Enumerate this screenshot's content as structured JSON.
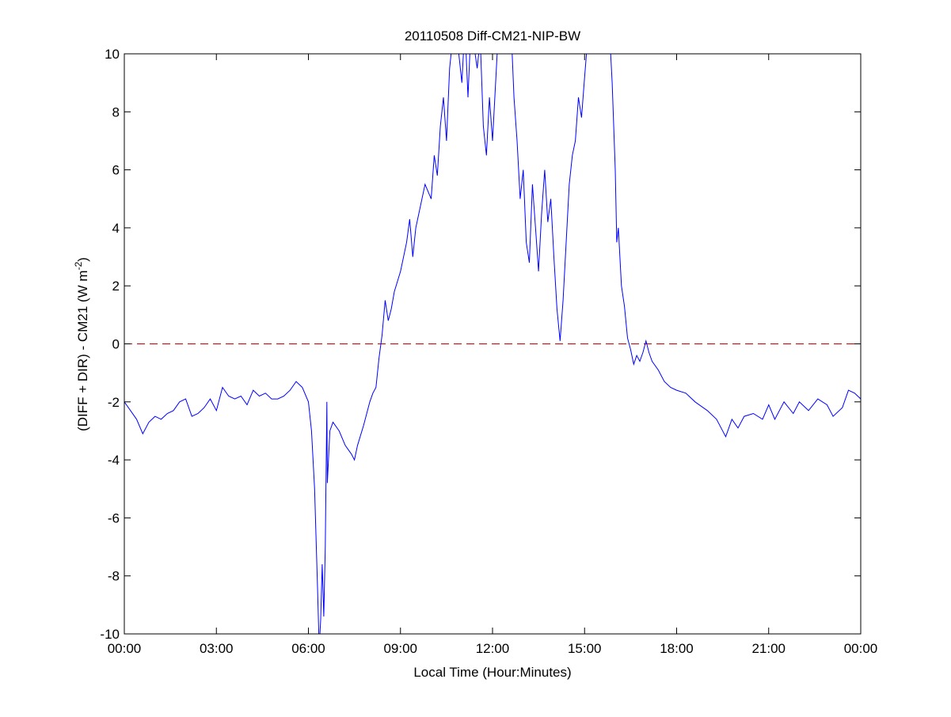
{
  "chart_data": {
    "type": "line",
    "title": "20110508 Diff-CM21-NIP-BW",
    "xlabel": "Local Time (Hour:Minutes)",
    "ylabel": {
      "main": "(DIFF + DIR) - CM21 (W m",
      "superscript": "-2",
      "close": ")"
    },
    "xlim": [
      "00:00",
      "24:00"
    ],
    "ylim": [
      -10,
      10
    ],
    "x_ticks": [
      "00:00",
      "03:00",
      "06:00",
      "09:00",
      "12:00",
      "15:00",
      "18:00",
      "21:00",
      "00:00"
    ],
    "y_ticks": [
      "-10",
      "-8",
      "-6",
      "-4",
      "-2",
      "0",
      "2",
      "4",
      "6",
      "8",
      "10"
    ],
    "grid": false,
    "reference_line": {
      "y": 0,
      "style": "dashed",
      "color": "#cc0000"
    },
    "series_color": "#0000ff",
    "points": [
      [
        "00:00",
        -2.0
      ],
      [
        "00:12",
        -2.3
      ],
      [
        "00:24",
        -2.6
      ],
      [
        "00:36",
        -3.1
      ],
      [
        "00:48",
        -2.7
      ],
      [
        "01:00",
        -2.5
      ],
      [
        "01:12",
        -2.6
      ],
      [
        "01:24",
        -2.4
      ],
      [
        "01:36",
        -2.3
      ],
      [
        "01:48",
        -2.0
      ],
      [
        "02:00",
        -1.9
      ],
      [
        "02:12",
        -2.5
      ],
      [
        "02:24",
        -2.4
      ],
      [
        "02:36",
        -2.2
      ],
      [
        "02:48",
        -1.9
      ],
      [
        "03:00",
        -2.3
      ],
      [
        "03:12",
        -1.5
      ],
      [
        "03:24",
        -1.8
      ],
      [
        "03:36",
        -1.9
      ],
      [
        "03:48",
        -1.8
      ],
      [
        "04:00",
        -2.1
      ],
      [
        "04:12",
        -1.6
      ],
      [
        "04:24",
        -1.8
      ],
      [
        "04:36",
        -1.7
      ],
      [
        "04:48",
        -1.9
      ],
      [
        "05:00",
        -1.9
      ],
      [
        "05:12",
        -1.8
      ],
      [
        "05:24",
        -1.6
      ],
      [
        "05:36",
        -1.3
      ],
      [
        "05:48",
        -1.5
      ],
      [
        "06:00",
        -2.0
      ],
      [
        "06:06",
        -3.0
      ],
      [
        "06:12",
        -5.0
      ],
      [
        "06:18",
        -8.5
      ],
      [
        "06:21",
        -10.5
      ],
      [
        "06:24",
        -9.5
      ],
      [
        "06:27",
        -7.6
      ],
      [
        "06:30",
        -9.4
      ],
      [
        "06:33",
        -7.0
      ],
      [
        "06:36",
        -2.0
      ],
      [
        "06:37",
        -4.8
      ],
      [
        "06:42",
        -3.0
      ],
      [
        "06:48",
        -2.7
      ],
      [
        "07:00",
        -3.0
      ],
      [
        "07:12",
        -3.5
      ],
      [
        "07:24",
        -3.8
      ],
      [
        "07:30",
        -4.0
      ],
      [
        "07:36",
        -3.5
      ],
      [
        "07:48",
        -2.8
      ],
      [
        "08:00",
        -2.0
      ],
      [
        "08:06",
        -1.7
      ],
      [
        "08:12",
        -1.5
      ],
      [
        "08:18",
        -0.5
      ],
      [
        "08:24",
        0.3
      ],
      [
        "08:30",
        1.5
      ],
      [
        "08:36",
        0.8
      ],
      [
        "08:42",
        1.2
      ],
      [
        "08:48",
        1.8
      ],
      [
        "09:00",
        2.5
      ],
      [
        "09:12",
        3.5
      ],
      [
        "09:18",
        4.3
      ],
      [
        "09:24",
        3.0
      ],
      [
        "09:30",
        4.0
      ],
      [
        "09:36",
        4.5
      ],
      [
        "09:48",
        5.5
      ],
      [
        "10:00",
        5.0
      ],
      [
        "10:06",
        6.5
      ],
      [
        "10:12",
        5.8
      ],
      [
        "10:18",
        7.5
      ],
      [
        "10:24",
        8.5
      ],
      [
        "10:30",
        7.0
      ],
      [
        "10:36",
        9.5
      ],
      [
        "10:42",
        10.5
      ],
      [
        "10:48",
        11.0
      ],
      [
        "11:00",
        9.0
      ],
      [
        "11:06",
        11.0
      ],
      [
        "11:12",
        8.5
      ],
      [
        "11:18",
        11.0
      ],
      [
        "11:30",
        9.5
      ],
      [
        "11:36",
        10.5
      ],
      [
        "11:42",
        7.5
      ],
      [
        "11:48",
        6.5
      ],
      [
        "11:54",
        8.5
      ],
      [
        "12:00",
        7.0
      ],
      [
        "12:06",
        9.0
      ],
      [
        "12:12",
        11.0
      ],
      [
        "12:24",
        11.0
      ],
      [
        "12:36",
        11.0
      ],
      [
        "12:42",
        8.5
      ],
      [
        "12:48",
        7.0
      ],
      [
        "12:54",
        5.0
      ],
      [
        "13:00",
        6.0
      ],
      [
        "13:06",
        3.5
      ],
      [
        "13:12",
        2.8
      ],
      [
        "13:18",
        5.5
      ],
      [
        "13:24",
        4.0
      ],
      [
        "13:30",
        2.5
      ],
      [
        "13:36",
        4.5
      ],
      [
        "13:42",
        6.0
      ],
      [
        "13:48",
        4.2
      ],
      [
        "13:54",
        5.0
      ],
      [
        "14:00",
        3.0
      ],
      [
        "14:06",
        1.2
      ],
      [
        "14:12",
        0.1
      ],
      [
        "14:18",
        1.5
      ],
      [
        "14:24",
        3.5
      ],
      [
        "14:30",
        5.5
      ],
      [
        "14:36",
        6.5
      ],
      [
        "14:42",
        7.0
      ],
      [
        "14:48",
        8.5
      ],
      [
        "14:54",
        7.8
      ],
      [
        "15:00",
        9.2
      ],
      [
        "15:06",
        10.5
      ],
      [
        "15:18",
        11.0
      ],
      [
        "15:36",
        11.0
      ],
      [
        "15:48",
        11.0
      ],
      [
        "15:54",
        9.0
      ],
      [
        "16:00",
        6.0
      ],
      [
        "16:03",
        3.5
      ],
      [
        "16:06",
        4.0
      ],
      [
        "16:12",
        2.0
      ],
      [
        "16:18",
        1.3
      ],
      [
        "16:24",
        0.2
      ],
      [
        "16:30",
        -0.2
      ],
      [
        "16:36",
        -0.7
      ],
      [
        "16:42",
        -0.4
      ],
      [
        "16:48",
        -0.6
      ],
      [
        "16:54",
        -0.3
      ],
      [
        "17:00",
        0.1
      ],
      [
        "17:06",
        -0.3
      ],
      [
        "17:12",
        -0.6
      ],
      [
        "17:24",
        -0.9
      ],
      [
        "17:36",
        -1.3
      ],
      [
        "17:48",
        -1.5
      ],
      [
        "18:00",
        -1.6
      ],
      [
        "18:18",
        -1.7
      ],
      [
        "18:36",
        -2.0
      ],
      [
        "19:00",
        -2.3
      ],
      [
        "19:18",
        -2.6
      ],
      [
        "19:36",
        -3.2
      ],
      [
        "19:48",
        -2.6
      ],
      [
        "20:00",
        -2.9
      ],
      [
        "20:12",
        -2.5
      ],
      [
        "20:30",
        -2.4
      ],
      [
        "20:48",
        -2.6
      ],
      [
        "21:00",
        -2.1
      ],
      [
        "21:12",
        -2.6
      ],
      [
        "21:30",
        -2.0
      ],
      [
        "21:48",
        -2.4
      ],
      [
        "22:00",
        -2.0
      ],
      [
        "22:18",
        -2.3
      ],
      [
        "22:36",
        -1.9
      ],
      [
        "22:54",
        -2.1
      ],
      [
        "23:06",
        -2.5
      ],
      [
        "23:24",
        -2.2
      ],
      [
        "23:36",
        -1.6
      ],
      [
        "23:48",
        -1.7
      ],
      [
        "24:00",
        -1.9
      ]
    ]
  }
}
